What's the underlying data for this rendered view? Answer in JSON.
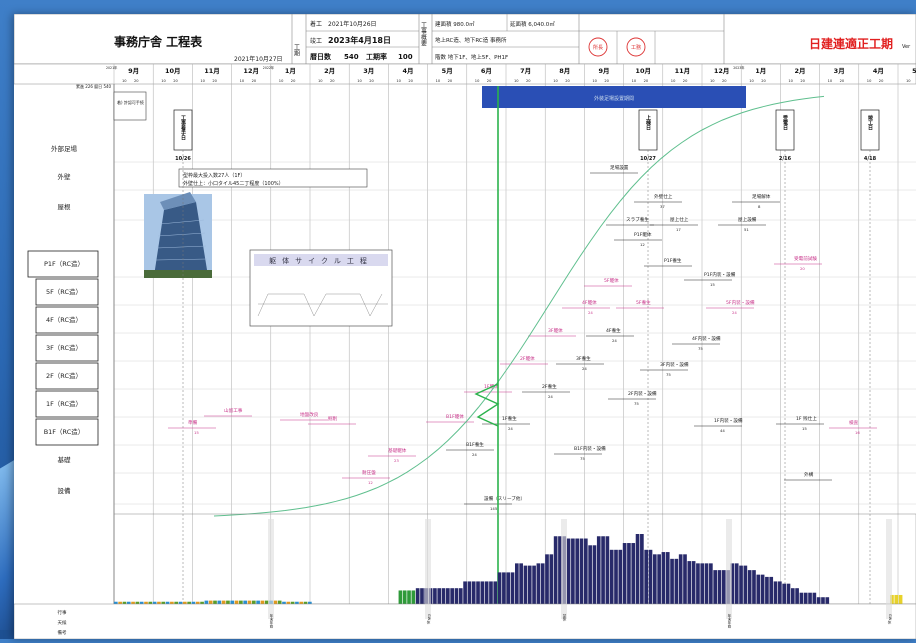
{
  "header": {
    "title": "事務庁舎 工程表",
    "date_issued": "2021年10月27日",
    "start_label": "着工",
    "start_date": "2021年10月26日",
    "end_label": "竣工",
    "end_date": "2023年4月18日",
    "days_label": "暦日数",
    "days_value": "540",
    "util_label": "工期率",
    "util_value": "100",
    "schedule_vertical": "工期",
    "overview_vertical": "工事概要",
    "building_area": "建面積 980.0㎡",
    "floor_area": "延面積 6,040.0㎡",
    "structure": "地上RC造、地下RC造 事務所",
    "floors": "階数 地下1F、地上5F、PH1F",
    "stamp1": "所長",
    "stamp2": "工務",
    "brand": "日建連適正工期",
    "brand_suffix": "Ver"
  },
  "timeline": {
    "year_markers": [
      "2021年",
      "2022年",
      "2023年"
    ],
    "months": [
      "9月",
      "10月",
      "11月",
      "12月",
      "1月",
      "2月",
      "3月",
      "4月",
      "5月",
      "6月",
      "7月",
      "8月",
      "9月",
      "10月",
      "11月",
      "12月",
      "1月",
      "2月",
      "3月",
      "4月",
      "5月"
    ],
    "days_left_label": "累進 226 暦日 540"
  },
  "rows": [
    "外部足場",
    "外壁",
    "屋根",
    "P1F（RC造）",
    "5F（RC造）",
    "4F（RC造）",
    "3F（RC造）",
    "2F（RC造）",
    "1F（RC造）",
    "B1F（RC造）",
    "基礎",
    "設備"
  ],
  "milestones": [
    {
      "label": "工事着手日",
      "date": "10/26"
    },
    {
      "label": "上棟日",
      "date": "10/27"
    },
    {
      "label": "受電日",
      "date": "2/16"
    },
    {
      "label": "竣工日",
      "date": "4/18"
    }
  ],
  "annotations": {
    "banner": "外装足場設置期間",
    "cycle_title": "躯体サイクル工程",
    "top_note": "着) 許認可手続",
    "wall_note1": "型枠最大投入数27人（1F）",
    "wall_note2": "外壁仕上：小口タイル45二丁程度（100%）",
    "bottom_left_rows": [
      "行事",
      "天候",
      "備考"
    ]
  },
  "tasks": [
    {
      "label": "足場設置",
      "dur": ""
    },
    {
      "label": "外壁仕上",
      "dur": "37"
    },
    {
      "label": "足場解体",
      "dur": "8"
    },
    {
      "label": "スラブ養生",
      "dur": ""
    },
    {
      "label": "屋上仕上",
      "dur": "17"
    },
    {
      "label": "屋上設備",
      "dur": "51"
    },
    {
      "label": "P1F躯体",
      "dur": "12"
    },
    {
      "label": "P1F養生",
      "dur": ""
    },
    {
      "label": "P1F内装・設備",
      "dur": "15"
    },
    {
      "label": "受電前試験",
      "dur": "20"
    },
    {
      "label": "5F躯体",
      "dur": ""
    },
    {
      "label": "5F養生",
      "dur": ""
    },
    {
      "label": "5F内装・設備",
      "dur": "24"
    },
    {
      "label": "4F躯体",
      "dur": "24"
    },
    {
      "label": "4F養生",
      "dur": "24"
    },
    {
      "label": "4F内装・設備",
      "dur": "75"
    },
    {
      "label": "3F躯体",
      "dur": ""
    },
    {
      "label": "3F養生",
      "dur": "24"
    },
    {
      "label": "3F内装・設備",
      "dur": "75"
    },
    {
      "label": "2F躯体",
      "dur": ""
    },
    {
      "label": "2F養生",
      "dur": "24"
    },
    {
      "label": "2F内装・設備",
      "dur": "75"
    },
    {
      "label": "1F躯体",
      "dur": ""
    },
    {
      "label": "1F養生",
      "dur": "24"
    },
    {
      "label": "1F内装・設備",
      "dur": "44"
    },
    {
      "label": "1F 残仕上",
      "dur": "15"
    },
    {
      "label": "検査",
      "dur": "16"
    },
    {
      "label": "B1F躯体",
      "dur": ""
    },
    {
      "label": "B1F養生",
      "dur": "24"
    },
    {
      "label": "B1F内装・設備",
      "dur": "75"
    },
    {
      "label": "準備",
      "dur": "15"
    },
    {
      "label": "山留工事",
      "dur": ""
    },
    {
      "label": "地盤改良",
      "dur": ""
    },
    {
      "label": "掘削",
      "dur": ""
    },
    {
      "label": "基礎躯体",
      "dur": "23"
    },
    {
      "label": "耐圧盤",
      "dur": "12"
    },
    {
      "label": "外構",
      "dur": ""
    },
    {
      "label": "設備（スリーブ他）",
      "dur": "145"
    }
  ],
  "holidays": [
    "年末年始",
    "GW休",
    "盆休",
    "年末年始",
    "GW休"
  ],
  "histogram": {
    "values": [
      2,
      2,
      2,
      2,
      2,
      2,
      2,
      2,
      2,
      2,
      2,
      2,
      2,
      2,
      2,
      2,
      2,
      2,
      2,
      2,
      2,
      3,
      3,
      3,
      3,
      3,
      3,
      3,
      3,
      3,
      3,
      3,
      3,
      3,
      3,
      3,
      3,
      3,
      3,
      2,
      2,
      2,
      2,
      2,
      2,
      2,
      0,
      0,
      0,
      0,
      0,
      0,
      0,
      0,
      0,
      0,
      0,
      0,
      0,
      0,
      0,
      0,
      0,
      0,
      0,
      0,
      12,
      12,
      12,
      12,
      14,
      14,
      14,
      14,
      14,
      14,
      14,
      14,
      14,
      14,
      14,
      20,
      20,
      20,
      20,
      20,
      20,
      20,
      20,
      28,
      28,
      28,
      28,
      36,
      36,
      34,
      34,
      34,
      36,
      36,
      44,
      44,
      60,
      60,
      60,
      58,
      58,
      58,
      58,
      58,
      52,
      52,
      60,
      60,
      60,
      48,
      48,
      48,
      54,
      54,
      54,
      62,
      62,
      48,
      48,
      44,
      44,
      46,
      46,
      40,
      40,
      44,
      44,
      38,
      38,
      36,
      36,
      36,
      36,
      30,
      30,
      30,
      30,
      36,
      36,
      34,
      34,
      30,
      30,
      26,
      26,
      24,
      24,
      20,
      20,
      18,
      18,
      14,
      14,
      10,
      10,
      10,
      10,
      6,
      6,
      6,
      0,
      0,
      0,
      0,
      0,
      0,
      0,
      0,
      0,
      0,
      0,
      0,
      0,
      0,
      8,
      8,
      8,
      0,
      0,
      0
    ],
    "colors": {
      "main": "#282a6a",
      "start": "#2f9a3a",
      "early": "#e09a20"
    }
  },
  "colors": {
    "progress_line": "#2bb24c",
    "curve": "#5fbf8e",
    "task_magenta": "#c8348a",
    "banner": "#2a4fb5",
    "brand_red": "#e12020"
  }
}
